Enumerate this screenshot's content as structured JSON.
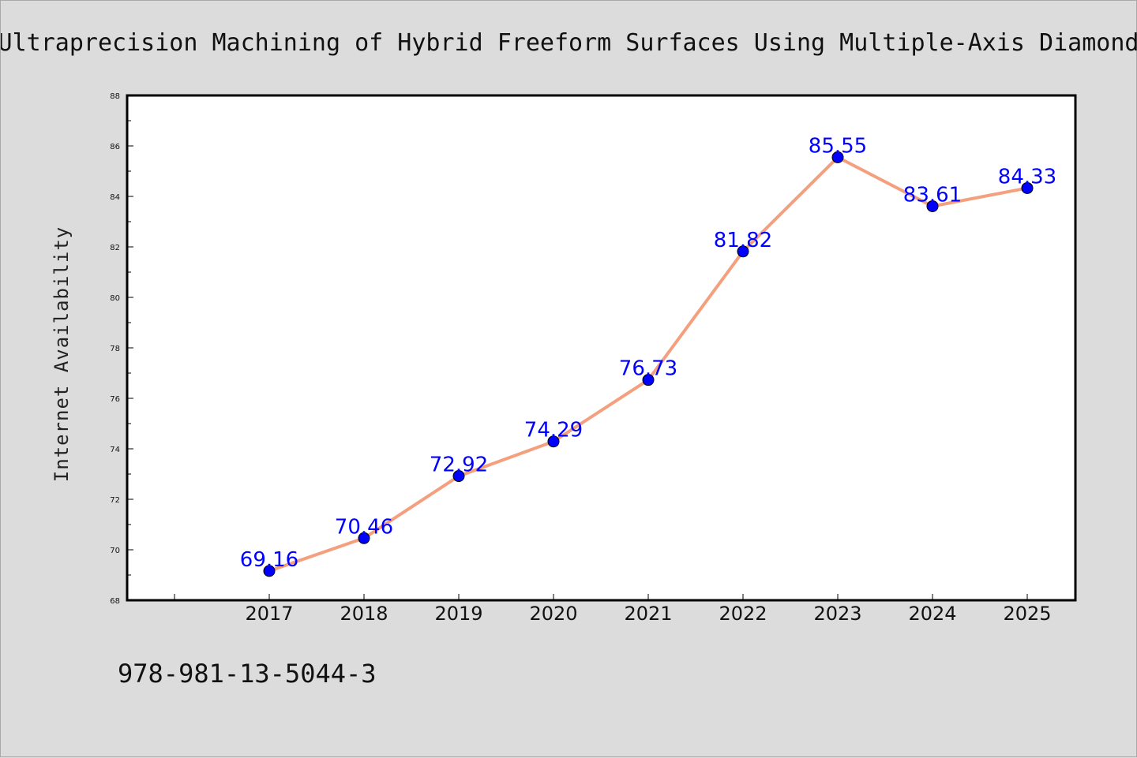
{
  "chart_data": {
    "type": "line",
    "title": "Ultraprecision Machining of Hybrid Freeform Surfaces Using Multiple-Axis Diamond",
    "xlabel": "",
    "ylabel": "Internet Availability",
    "categories": [
      "2017",
      "2018",
      "2019",
      "2020",
      "2021",
      "2022",
      "2023",
      "2024",
      "2025"
    ],
    "series": [
      {
        "values": [
          69.16,
          70.46,
          72.92,
          74.29,
          76.73,
          81.82,
          85.55,
          83.61,
          84.33
        ],
        "data_labels": [
          "69.16",
          "70.46",
          "72.92",
          "74.29",
          "76.73",
          "81.82",
          "85.55",
          "83.61",
          "84.33"
        ],
        "line_color": "#f4a07e",
        "marker_color": "#0000ff"
      }
    ],
    "ylim": [
      68,
      88
    ],
    "yticks": [
      68,
      70,
      72,
      74,
      76,
      78,
      80,
      82,
      84,
      86,
      88
    ],
    "ytick_labels": [
      "68",
      "70",
      "72",
      "74",
      "76",
      "78",
      "80",
      "82",
      "84",
      "86",
      "88"
    ],
    "grid": false,
    "legend": "none"
  },
  "footnote": "978-981-13-5044-3",
  "colors": {
    "background": "#dcdcdc",
    "plot_background": "#ffffff",
    "axis": "#000000"
  }
}
